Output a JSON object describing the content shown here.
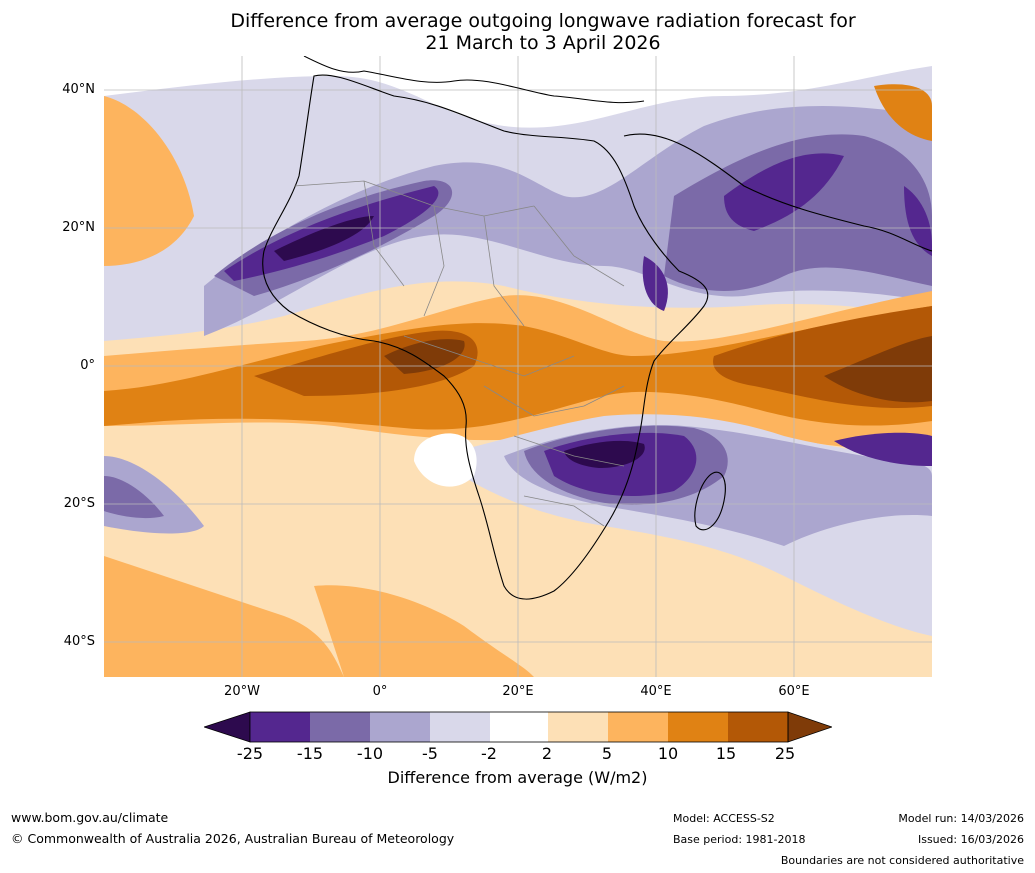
{
  "title_line1": "Difference from average outgoing longwave radiation forecast for",
  "title_line2": "21 March to 3 April 2026",
  "axes": {
    "lat_labels": [
      "40°N",
      "20°N",
      "0°",
      "20°S",
      "40°S"
    ],
    "lon_labels": [
      "20°W",
      "0°",
      "20°E",
      "40°E",
      "60°E"
    ]
  },
  "colorbar": {
    "ticks": [
      "-25",
      "-15",
      "-10",
      "-5",
      "-2",
      "2",
      "5",
      "10",
      "15",
      "25"
    ],
    "label": "Difference from average (W/m2)",
    "colors": {
      "under": "#2d0a4e",
      "neg_25_15": "#54278f",
      "neg_15_10": "#7b6aa8",
      "neg_10_5": "#aba6cf",
      "neg_5_2": "#d9d8ea",
      "neutral": "#ffffff",
      "pos_2_5": "#fde0b6",
      "pos_5_10": "#fdb45e",
      "pos_10_15": "#e08214",
      "pos_15_25": "#b35806",
      "over": "#7f3b08"
    }
  },
  "footer": {
    "url": "www.bom.gov.au/climate",
    "copyright": "© Commonwealth of Australia 2026, Australian Bureau of Meteorology",
    "model": "Model: ACCESS-S2",
    "base_period": "Base period: 1981-2018",
    "model_run": "Model run: 14/03/2026",
    "issued": "Issued: 16/03/2026",
    "disclaimer": "Boundaries are not considered authoritative"
  }
}
